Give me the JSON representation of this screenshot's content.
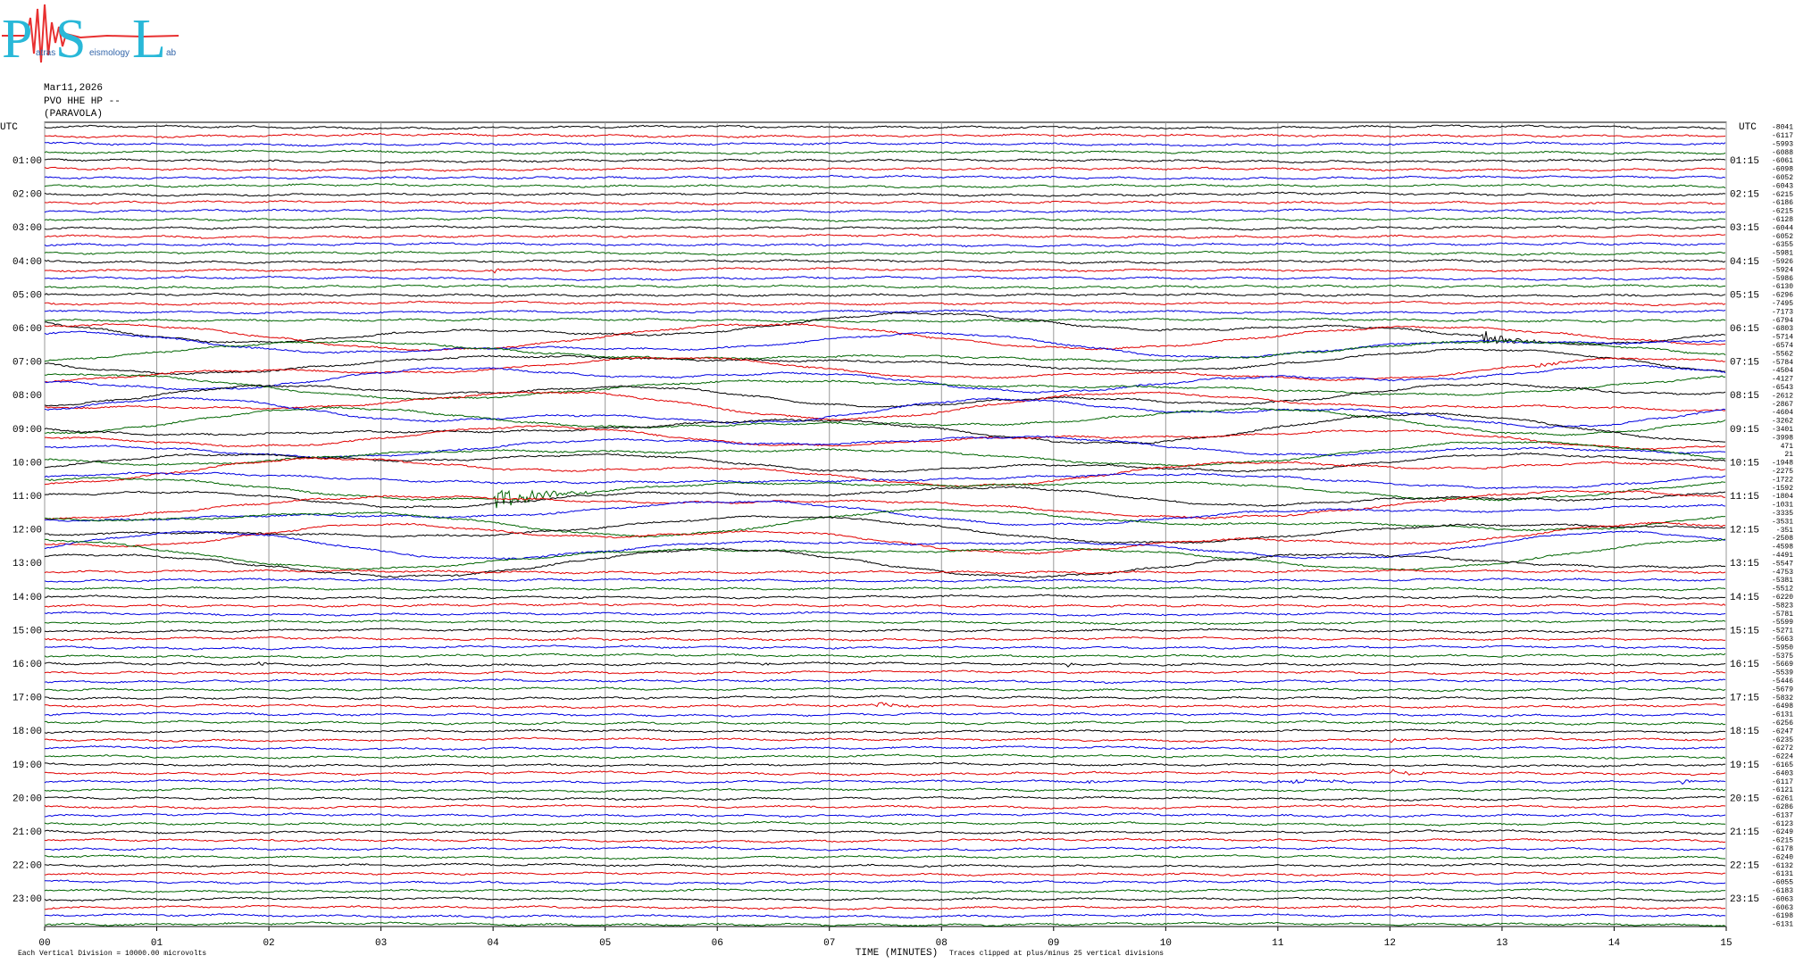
{
  "logo": {
    "letters": [
      "P",
      "S",
      "L"
    ],
    "words": [
      "atras",
      "eismology",
      "ab"
    ]
  },
  "header": {
    "date": "Mar11,2026",
    "station": "PVO HHE HP --",
    "site": "(PARAVOLA)"
  },
  "chart_data": {
    "type": "helicorder",
    "left_axis_title": "UTC",
    "right_axis_title": "UTC",
    "left_labels": [
      "01:00",
      "02:00",
      "03:00",
      "04:00",
      "05:00",
      "06:00",
      "07:00",
      "08:00",
      "09:00",
      "10:00",
      "11:00",
      "12:00",
      "13:00",
      "14:00",
      "15:00",
      "16:00",
      "17:00",
      "18:00",
      "19:00",
      "20:00",
      "21:00",
      "22:00",
      "23:00"
    ],
    "right_labels": [
      "01:15",
      "02:15",
      "03:15",
      "04:15",
      "05:15",
      "06:15",
      "07:15",
      "08:15",
      "09:15",
      "10:15",
      "11:15",
      "12:15",
      "13:15",
      "14:15",
      "15:15",
      "16:15",
      "17:15",
      "18:15",
      "19:15",
      "20:15",
      "21:15",
      "22:15",
      "23:15"
    ],
    "trace_offsets": [
      -8041,
      -6117,
      -5993,
      -6088,
      -6061,
      -6098,
      -6052,
      -6043,
      -6215,
      -6186,
      -6215,
      -6128,
      -6044,
      -6052,
      -6355,
      -5981,
      -5926,
      -5924,
      -5986,
      -6130,
      -6296,
      -7495,
      -7173,
      -6794,
      -6803,
      -5714,
      -6574,
      -5562,
      -5784,
      -4504,
      -4127,
      -6543,
      -2612,
      -2867,
      -4604,
      -3262,
      -3401,
      -3998,
      471,
      21,
      -1948,
      -2275,
      -1722,
      -1592,
      -1804,
      -1031,
      -3335,
      -3531,
      -351,
      -2508,
      -4598,
      -4491,
      -5547,
      -4753,
      -5381,
      -5512,
      -6220,
      -5823,
      -5781,
      -5599,
      -5271,
      -5663,
      -5950,
      -5375,
      -5669,
      -5539,
      -5446,
      -5679,
      -5832,
      -6498,
      -6131,
      -6256,
      -6247,
      -6235,
      -6272,
      -6224,
      -6165,
      -6403,
      -6117,
      -6121,
      -6261,
      -6286,
      -6137,
      -6123,
      -6249,
      -6215,
      -6178,
      -6240,
      -6132,
      -6131,
      -6055,
      -6183,
      -6063,
      -6063,
      -6198,
      -6131
    ],
    "xlabel": "TIME (MINUTES)",
    "xticks": [
      {
        "value": 0,
        "label": "00"
      },
      {
        "value": 1,
        "label": "01"
      },
      {
        "value": 2,
        "label": "02"
      },
      {
        "value": 3,
        "label": "03"
      },
      {
        "value": 4,
        "label": "04"
      },
      {
        "value": 5,
        "label": "05"
      },
      {
        "value": 6,
        "label": "06"
      },
      {
        "value": 7,
        "label": "07"
      },
      {
        "value": 8,
        "label": "08"
      },
      {
        "value": 9,
        "label": "09"
      },
      {
        "value": 10,
        "label": "10"
      },
      {
        "value": 11,
        "label": "11"
      },
      {
        "value": 12,
        "label": "12"
      },
      {
        "value": 13,
        "label": "13"
      },
      {
        "value": 14,
        "label": "14"
      },
      {
        "value": 15,
        "label": "15"
      }
    ],
    "xlim": [
      0,
      15
    ],
    "grid": true,
    "trace_colors": [
      "#000000",
      "#e00000",
      "#0000e0",
      "#006400"
    ],
    "scale_note": "Each Vertical Division = 10000.00 microvolts",
    "clip_note": "Traces clipped at plus/minus 25 vertical divisions"
  }
}
